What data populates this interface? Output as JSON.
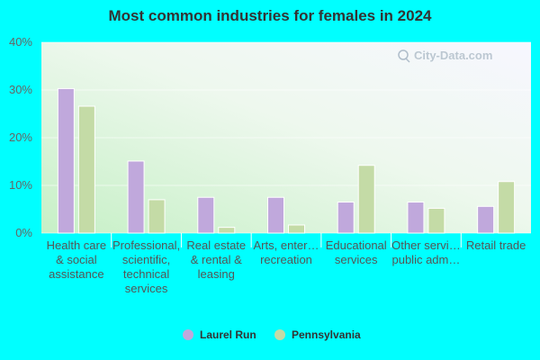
{
  "chart_data": {
    "type": "bar",
    "title": "Most common industries for females in 2024",
    "xlabel": "",
    "ylabel": "",
    "ylim": [
      0,
      40
    ],
    "yticks": [
      "0%",
      "10%",
      "20%",
      "30%",
      "40%"
    ],
    "categories": [
      [
        "Health care",
        "& social",
        "assistance"
      ],
      [
        "Professional,",
        "scientific,",
        "technical",
        "services"
      ],
      [
        "Real estate",
        "& rental &",
        "leasing"
      ],
      [
        "Arts, enter…",
        "recreation"
      ],
      [
        "Educational",
        "services"
      ],
      [
        "Other servi…",
        "public adm…"
      ],
      [
        "Retail trade"
      ]
    ],
    "series": [
      {
        "name": "Laurel Run",
        "color": "#c0a8dc",
        "values": [
          30.3,
          15.1,
          7.5,
          7.5,
          6.5,
          6.5,
          5.6
        ]
      },
      {
        "name": "Pennsylvania",
        "color": "#c4dba6",
        "values": [
          26.6,
          7.0,
          1.2,
          1.7,
          14.2,
          5.2,
          10.8
        ]
      }
    ],
    "legend_position": "bottom",
    "grid": true
  },
  "watermark": "City-Data.com"
}
